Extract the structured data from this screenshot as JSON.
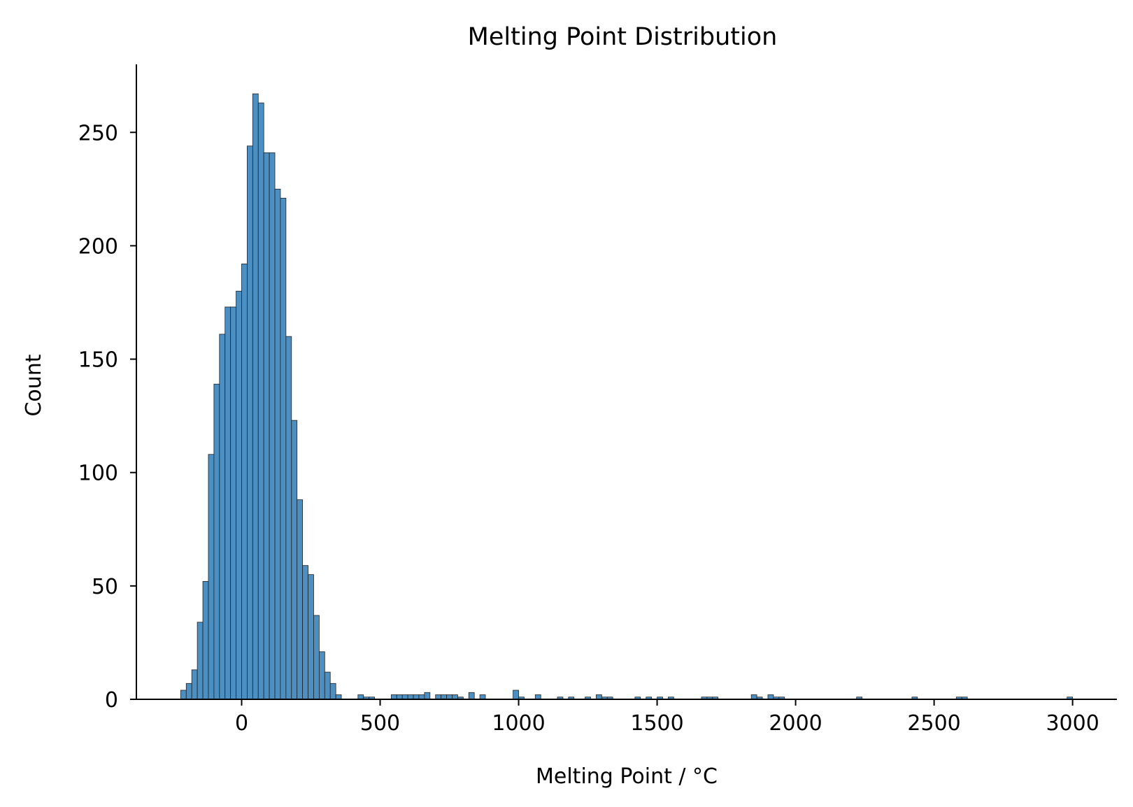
{
  "chart_data": {
    "type": "bar",
    "title": "Melting Point Distribution",
    "xlabel": "Melting Point / °C",
    "ylabel": "Count",
    "xlim": [
      -380,
      3160
    ],
    "ylim": [
      0,
      280
    ],
    "xticks": [
      0,
      500,
      1000,
      1500,
      2000,
      2500,
      3000
    ],
    "yticks": [
      0,
      50,
      100,
      150,
      200,
      250
    ],
    "bin_width": 20,
    "color": "#4c8fc2",
    "edge_color": "#222222",
    "grid": false,
    "bins": [
      {
        "x0": -220,
        "count": 4
      },
      {
        "x0": -200,
        "count": 7
      },
      {
        "x0": -180,
        "count": 13
      },
      {
        "x0": -160,
        "count": 34
      },
      {
        "x0": -140,
        "count": 52
      },
      {
        "x0": -120,
        "count": 108
      },
      {
        "x0": -100,
        "count": 139
      },
      {
        "x0": -80,
        "count": 161
      },
      {
        "x0": -60,
        "count": 173
      },
      {
        "x0": -40,
        "count": 173
      },
      {
        "x0": -20,
        "count": 180
      },
      {
        "x0": 0,
        "count": 192
      },
      {
        "x0": 20,
        "count": 244
      },
      {
        "x0": 40,
        "count": 267
      },
      {
        "x0": 60,
        "count": 263
      },
      {
        "x0": 80,
        "count": 241
      },
      {
        "x0": 100,
        "count": 241
      },
      {
        "x0": 120,
        "count": 225
      },
      {
        "x0": 140,
        "count": 221
      },
      {
        "x0": 160,
        "count": 160
      },
      {
        "x0": 180,
        "count": 123
      },
      {
        "x0": 200,
        "count": 88
      },
      {
        "x0": 220,
        "count": 59
      },
      {
        "x0": 240,
        "count": 55
      },
      {
        "x0": 260,
        "count": 37
      },
      {
        "x0": 280,
        "count": 21
      },
      {
        "x0": 300,
        "count": 12
      },
      {
        "x0": 320,
        "count": 7
      },
      {
        "x0": 340,
        "count": 2
      },
      {
        "x0": 420,
        "count": 2
      },
      {
        "x0": 440,
        "count": 1
      },
      {
        "x0": 460,
        "count": 1
      },
      {
        "x0": 540,
        "count": 2
      },
      {
        "x0": 560,
        "count": 2
      },
      {
        "x0": 580,
        "count": 2
      },
      {
        "x0": 600,
        "count": 2
      },
      {
        "x0": 620,
        "count": 2
      },
      {
        "x0": 640,
        "count": 2
      },
      {
        "x0": 660,
        "count": 3
      },
      {
        "x0": 700,
        "count": 2
      },
      {
        "x0": 720,
        "count": 2
      },
      {
        "x0": 740,
        "count": 2
      },
      {
        "x0": 760,
        "count": 2
      },
      {
        "x0": 780,
        "count": 1
      },
      {
        "x0": 820,
        "count": 3
      },
      {
        "x0": 860,
        "count": 2
      },
      {
        "x0": 980,
        "count": 4
      },
      {
        "x0": 1000,
        "count": 1
      },
      {
        "x0": 1060,
        "count": 2
      },
      {
        "x0": 1140,
        "count": 1
      },
      {
        "x0": 1180,
        "count": 1
      },
      {
        "x0": 1240,
        "count": 1
      },
      {
        "x0": 1280,
        "count": 2
      },
      {
        "x0": 1300,
        "count": 1
      },
      {
        "x0": 1320,
        "count": 1
      },
      {
        "x0": 1420,
        "count": 1
      },
      {
        "x0": 1460,
        "count": 1
      },
      {
        "x0": 1500,
        "count": 1
      },
      {
        "x0": 1540,
        "count": 1
      },
      {
        "x0": 1660,
        "count": 1
      },
      {
        "x0": 1680,
        "count": 1
      },
      {
        "x0": 1700,
        "count": 1
      },
      {
        "x0": 1840,
        "count": 2
      },
      {
        "x0": 1860,
        "count": 1
      },
      {
        "x0": 1900,
        "count": 2
      },
      {
        "x0": 1920,
        "count": 1
      },
      {
        "x0": 1940,
        "count": 1
      },
      {
        "x0": 2220,
        "count": 1
      },
      {
        "x0": 2420,
        "count": 1
      },
      {
        "x0": 2580,
        "count": 1
      },
      {
        "x0": 2600,
        "count": 1
      },
      {
        "x0": 2980,
        "count": 1
      }
    ]
  }
}
